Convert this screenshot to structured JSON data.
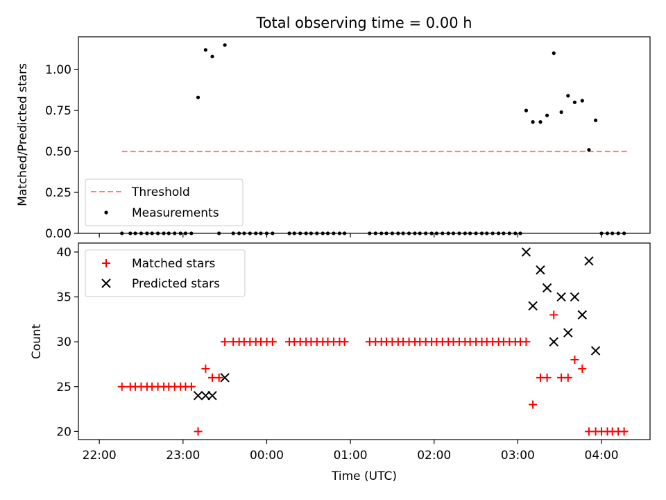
{
  "chart_data": [
    {
      "type": "scatter",
      "title": "Total observing time = 0.00 h",
      "ylabel": "Matched/Predicted stars",
      "xlabel": "",
      "xlim": [
        -0.25,
        6.58
      ],
      "ylim": [
        0,
        1.2
      ],
      "yticks": [
        0.0,
        0.25,
        0.5,
        0.75,
        1.0
      ],
      "ytick_labels": [
        "0.00",
        "0.25",
        "0.50",
        "0.75",
        "1.00"
      ],
      "grid": false,
      "legend_position": "lower-left",
      "series": [
        {
          "name": "Threshold",
          "kind": "dashed-line",
          "color": "#ff7f7f",
          "x": [
            0.27,
            6.33
          ],
          "y": [
            0.5,
            0.5
          ]
        },
        {
          "name": "Measurements",
          "kind": "dots",
          "color": "#000000",
          "x": [
            0.27,
            0.37,
            0.43,
            0.5,
            0.57,
            0.63,
            0.7,
            0.77,
            0.83,
            0.9,
            0.97,
            1.03,
            1.1,
            1.18,
            1.27,
            1.35,
            1.43,
            1.5,
            1.6,
            1.67,
            1.73,
            1.8,
            1.87,
            1.93,
            2.0,
            2.07,
            2.27,
            2.33,
            2.4,
            2.47,
            2.53,
            2.6,
            2.67,
            2.73,
            2.8,
            2.87,
            2.93,
            3.23,
            3.3,
            3.37,
            3.43,
            3.5,
            3.57,
            3.63,
            3.7,
            3.77,
            3.83,
            3.9,
            3.97,
            4.03,
            4.1,
            4.17,
            4.23,
            4.3,
            4.37,
            4.43,
            4.5,
            4.57,
            4.63,
            4.7,
            4.77,
            4.83,
            4.9,
            4.97,
            5.03,
            5.1,
            5.18,
            5.27,
            5.35,
            5.43,
            5.52,
            5.6,
            5.68,
            5.77,
            5.85,
            5.93,
            6.0,
            6.07,
            6.13,
            6.2,
            6.27
          ],
          "y": [
            0,
            0,
            0,
            0,
            0,
            0,
            0,
            0,
            0,
            0,
            0,
            0,
            0,
            0.83,
            1.12,
            1.08,
            0,
            1.15,
            0,
            0,
            0,
            0,
            0,
            0,
            0,
            0,
            0,
            0,
            0,
            0,
            0,
            0,
            0,
            0,
            0,
            0,
            0,
            0,
            0,
            0,
            0,
            0,
            0,
            0,
            0,
            0,
            0,
            0,
            0,
            0,
            0,
            0,
            0,
            0,
            0,
            0,
            0,
            0,
            0,
            0,
            0,
            0,
            0,
            0,
            0,
            0.75,
            0.68,
            0.68,
            0.72,
            1.1,
            0.74,
            0.84,
            0.8,
            0.81,
            0.51,
            0.69,
            0,
            0,
            0,
            0,
            0
          ]
        }
      ]
    },
    {
      "type": "scatter",
      "title": "",
      "ylabel": "Count",
      "xlabel": "Time (UTC)",
      "xlim": [
        -0.25,
        6.58
      ],
      "ylim": [
        19.1,
        41.0
      ],
      "yticks": [
        20,
        25,
        30,
        35,
        40
      ],
      "ytick_labels": [
        "20",
        "25",
        "30",
        "35",
        "40"
      ],
      "xticks": [
        0,
        1,
        2,
        3,
        4,
        5,
        6
      ],
      "xtick_labels": [
        "22:00",
        "23:00",
        "00:00",
        "01:00",
        "02:00",
        "03:00",
        "04:00"
      ],
      "grid": false,
      "legend_position": "upper-left",
      "series": [
        {
          "name": "Matched stars",
          "marker": "plus",
          "color": "#ff0000",
          "x": [
            0.27,
            0.37,
            0.43,
            0.5,
            0.57,
            0.63,
            0.7,
            0.77,
            0.83,
            0.9,
            0.97,
            1.03,
            1.1,
            1.18,
            1.27,
            1.35,
            1.43,
            1.5,
            1.6,
            1.67,
            1.73,
            1.8,
            1.87,
            1.93,
            2.0,
            2.07,
            2.27,
            2.33,
            2.4,
            2.47,
            2.53,
            2.6,
            2.67,
            2.73,
            2.8,
            2.87,
            2.93,
            3.23,
            3.3,
            3.37,
            3.43,
            3.5,
            3.57,
            3.63,
            3.7,
            3.77,
            3.83,
            3.9,
            3.97,
            4.03,
            4.1,
            4.17,
            4.23,
            4.3,
            4.37,
            4.43,
            4.5,
            4.57,
            4.63,
            4.7,
            4.77,
            4.83,
            4.9,
            4.97,
            5.03,
            5.1,
            5.18,
            5.27,
            5.35,
            5.43,
            5.52,
            5.6,
            5.68,
            5.77,
            5.85,
            5.93,
            6.0,
            6.07,
            6.13,
            6.2,
            6.27
          ],
          "y": [
            25,
            25,
            25,
            25,
            25,
            25,
            25,
            25,
            25,
            25,
            25,
            25,
            25,
            20,
            27,
            26,
            26,
            30,
            30,
            30,
            30,
            30,
            30,
            30,
            30,
            30,
            30,
            30,
            30,
            30,
            30,
            30,
            30,
            30,
            30,
            30,
            30,
            30,
            30,
            30,
            30,
            30,
            30,
            30,
            30,
            30,
            30,
            30,
            30,
            30,
            30,
            30,
            30,
            30,
            30,
            30,
            30,
            30,
            30,
            30,
            30,
            30,
            30,
            30,
            30,
            30,
            23,
            26,
            26,
            33,
            26,
            26,
            28,
            27,
            20,
            20,
            20,
            20,
            20,
            20,
            20
          ]
        },
        {
          "name": "Predicted stars",
          "marker": "x",
          "color": "#000000",
          "x": [
            1.18,
            1.27,
            1.35,
            1.5,
            5.1,
            5.18,
            5.27,
            5.35,
            5.43,
            5.52,
            5.6,
            5.68,
            5.77,
            5.85,
            5.93
          ],
          "y": [
            24,
            24,
            24,
            26,
            40,
            34,
            38,
            36,
            30,
            35,
            31,
            35,
            33,
            39,
            29
          ]
        }
      ]
    }
  ]
}
